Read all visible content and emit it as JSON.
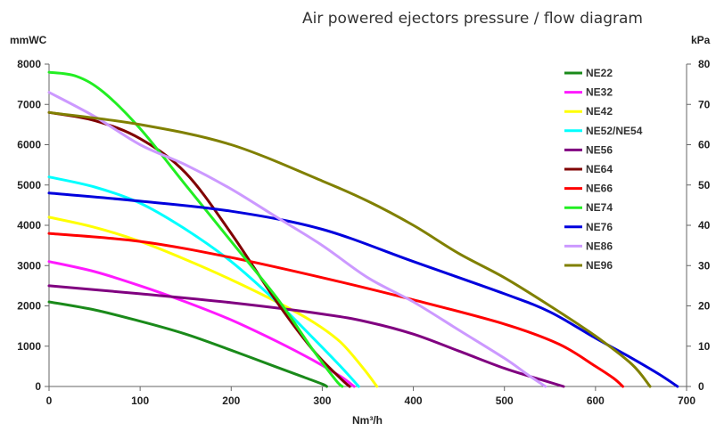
{
  "chart_data": {
    "type": "line",
    "title": "Air powered ejectors pressure / flow diagram",
    "xlabel": "Nm³/h",
    "ylabel": "mmWC",
    "y2label": "kPa",
    "xlim": [
      0,
      700
    ],
    "ylim": [
      0,
      8000
    ],
    "y2lim": [
      0,
      80
    ],
    "xticks": [
      "0",
      "100",
      "200",
      "300",
      "400",
      "500",
      "600",
      "700"
    ],
    "yticks": [
      "0",
      "1000",
      "2000",
      "3000",
      "4000",
      "5000",
      "6000",
      "7000",
      "8000"
    ],
    "y2ticks": [
      "0",
      "10",
      "20",
      "30",
      "40",
      "50",
      "60",
      "70",
      "80"
    ],
    "grid": false,
    "legend_position": "top-right",
    "series": [
      {
        "name": "NE22",
        "color": "#1a8a1a",
        "points": [
          [
            0,
            2100
          ],
          [
            50,
            1900
          ],
          [
            100,
            1620
          ],
          [
            150,
            1300
          ],
          [
            200,
            900
          ],
          [
            250,
            480
          ],
          [
            280,
            230
          ],
          [
            300,
            60
          ],
          [
            305,
            0
          ]
        ]
      },
      {
        "name": "NE32",
        "color": "#ff1aff",
        "points": [
          [
            0,
            3100
          ],
          [
            50,
            2850
          ],
          [
            100,
            2500
          ],
          [
            150,
            2100
          ],
          [
            200,
            1650
          ],
          [
            250,
            1120
          ],
          [
            290,
            650
          ],
          [
            320,
            250
          ],
          [
            335,
            0
          ]
        ]
      },
      {
        "name": "NE42",
        "color": "#ffff00",
        "points": [
          [
            0,
            4200
          ],
          [
            50,
            3950
          ],
          [
            100,
            3600
          ],
          [
            150,
            3150
          ],
          [
            200,
            2650
          ],
          [
            250,
            2100
          ],
          [
            290,
            1600
          ],
          [
            320,
            1100
          ],
          [
            345,
            450
          ],
          [
            360,
            0
          ]
        ]
      },
      {
        "name": "NE52/NE54",
        "color": "#00ffff",
        "points": [
          [
            0,
            5200
          ],
          [
            50,
            4950
          ],
          [
            100,
            4550
          ],
          [
            150,
            3900
          ],
          [
            200,
            3100
          ],
          [
            250,
            2100
          ],
          [
            290,
            1200
          ],
          [
            320,
            500
          ],
          [
            340,
            0
          ]
        ]
      },
      {
        "name": "NE56",
        "color": "#800080",
        "points": [
          [
            0,
            2500
          ],
          [
            100,
            2300
          ],
          [
            200,
            2080
          ],
          [
            300,
            1800
          ],
          [
            350,
            1600
          ],
          [
            400,
            1300
          ],
          [
            450,
            880
          ],
          [
            500,
            450
          ],
          [
            540,
            170
          ],
          [
            565,
            0
          ]
        ]
      },
      {
        "name": "NE64",
        "color": "#800000",
        "points": [
          [
            0,
            6800
          ],
          [
            50,
            6600
          ],
          [
            100,
            6150
          ],
          [
            150,
            5300
          ],
          [
            200,
            3800
          ],
          [
            250,
            2100
          ],
          [
            290,
            900
          ],
          [
            320,
            200
          ],
          [
            330,
            0
          ]
        ]
      },
      {
        "name": "NE66",
        "color": "#ff0000",
        "points": [
          [
            0,
            3800
          ],
          [
            100,
            3600
          ],
          [
            200,
            3200
          ],
          [
            300,
            2700
          ],
          [
            400,
            2150
          ],
          [
            500,
            1550
          ],
          [
            560,
            1050
          ],
          [
            600,
            500
          ],
          [
            620,
            200
          ],
          [
            630,
            0
          ]
        ]
      },
      {
        "name": "NE74",
        "color": "#22ee22",
        "points": [
          [
            0,
            7800
          ],
          [
            30,
            7700
          ],
          [
            60,
            7300
          ],
          [
            100,
            6400
          ],
          [
            150,
            5000
          ],
          [
            200,
            3600
          ],
          [
            250,
            2200
          ],
          [
            290,
            900
          ],
          [
            315,
            150
          ],
          [
            322,
            0
          ]
        ]
      },
      {
        "name": "NE76",
        "color": "#0000dd",
        "points": [
          [
            0,
            4800
          ],
          [
            100,
            4600
          ],
          [
            200,
            4350
          ],
          [
            300,
            3900
          ],
          [
            400,
            3100
          ],
          [
            500,
            2300
          ],
          [
            550,
            1850
          ],
          [
            600,
            1200
          ],
          [
            640,
            700
          ],
          [
            670,
            300
          ],
          [
            690,
            0
          ]
        ]
      },
      {
        "name": "NE86",
        "color": "#cc99ff",
        "points": [
          [
            0,
            7300
          ],
          [
            50,
            6700
          ],
          [
            100,
            6000
          ],
          [
            150,
            5500
          ],
          [
            200,
            4900
          ],
          [
            250,
            4200
          ],
          [
            300,
            3500
          ],
          [
            350,
            2700
          ],
          [
            400,
            2100
          ],
          [
            450,
            1400
          ],
          [
            500,
            700
          ],
          [
            525,
            300
          ],
          [
            545,
            0
          ]
        ]
      },
      {
        "name": "NE96",
        "color": "#808000",
        "points": [
          [
            0,
            6800
          ],
          [
            100,
            6500
          ],
          [
            200,
            6000
          ],
          [
            300,
            5100
          ],
          [
            350,
            4600
          ],
          [
            400,
            4000
          ],
          [
            450,
            3300
          ],
          [
            500,
            2700
          ],
          [
            550,
            2000
          ],
          [
            600,
            1250
          ],
          [
            640,
            550
          ],
          [
            660,
            0
          ]
        ]
      }
    ]
  }
}
